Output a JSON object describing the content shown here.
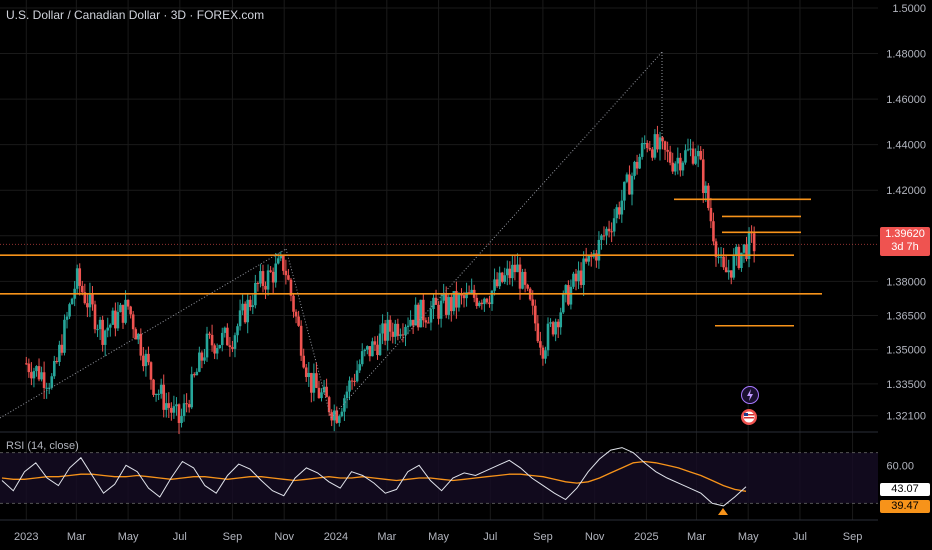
{
  "header": {
    "symbol_title": "U.S. Dollar / Canadian Dollar · 3D · FOREX.com"
  },
  "rsi": {
    "label": "RSI (14, close)",
    "value": "43.07",
    "ma_value": "39.47",
    "level_label": "60.00"
  },
  "price_box": {
    "price": "1.39620",
    "countdown": "3d 7h"
  },
  "colors": {
    "up": "#26a69a",
    "down": "#ef5350",
    "level": "#f7931a",
    "rsi": "#e0e3eb",
    "rsi_ma": "#f7931a",
    "grid": "#1a1a1a",
    "text": "#b2b5be",
    "dotted": "#9598a1"
  },
  "icons": [
    "lightning-event-icon",
    "us-flag-event-icon"
  ],
  "chart_data": [
    {
      "type": "candlestick",
      "title": "U.S. Dollar / Canadian Dollar · 3D · FOREX.com",
      "x_ticks": [
        "2023",
        "Mar",
        "May",
        "Jul",
        "Sep",
        "Nov",
        "2024",
        "Mar",
        "May",
        "Jul",
        "Sep",
        "Nov",
        "2025",
        "Mar",
        "May",
        "Jul",
        "Sep"
      ],
      "y_ticks": [
        1.5,
        1.48,
        1.46,
        1.44,
        1.42,
        1.4,
        1.38,
        1.365,
        1.35,
        1.335,
        1.321
      ],
      "last_price": 1.3962,
      "horizontal_levels": [
        1.3915,
        1.3745,
        1.416,
        1.4085,
        1.4015,
        1.3605
      ],
      "price_path": [
        [
          "2023-01-01",
          1.344
        ],
        [
          "2023-02-01",
          1.336
        ],
        [
          "2023-03-01",
          1.381
        ],
        [
          "2023-04-01",
          1.358
        ],
        [
          "2023-05-01",
          1.369
        ],
        [
          "2023-06-01",
          1.334
        ],
        [
          "2023-07-01",
          1.318
        ],
        [
          "2023-08-01",
          1.352
        ],
        [
          "2023-09-01",
          1.356
        ],
        [
          "2023-10-01",
          1.378
        ],
        [
          "2023-11-01",
          1.388
        ],
        [
          "2023-12-01",
          1.336
        ],
        [
          "2024-01-01",
          1.322
        ],
        [
          "2024-02-01",
          1.346
        ],
        [
          "2024-03-01",
          1.358
        ],
        [
          "2024-04-01",
          1.365
        ],
        [
          "2024-05-01",
          1.368
        ],
        [
          "2024-06-01",
          1.372
        ],
        [
          "2024-07-01",
          1.375
        ],
        [
          "2024-08-01",
          1.386
        ],
        [
          "2024-09-01",
          1.352
        ],
        [
          "2024-10-01",
          1.375
        ],
        [
          "2024-11-01",
          1.392
        ],
        [
          "2024-12-01",
          1.414
        ],
        [
          "2025-01-01",
          1.442
        ],
        [
          "2025-02-01",
          1.433
        ],
        [
          "2025-03-01",
          1.438
        ],
        [
          "2025-04-01",
          1.382
        ],
        [
          "2025-05-01",
          1.3962
        ]
      ]
    },
    {
      "type": "line",
      "title": "RSI (14, close)",
      "series": [
        {
          "name": "RSI",
          "values": [
            48,
            40,
            55,
            62,
            50,
            44,
            58,
            66,
            52,
            38,
            45,
            60,
            55,
            42,
            35,
            50,
            63,
            58,
            44,
            38,
            52,
            61,
            57,
            48,
            40,
            36,
            50,
            58,
            54,
            47,
            42,
            55,
            52,
            46,
            38,
            41,
            55,
            60,
            48,
            40,
            50,
            54,
            52,
            56,
            60,
            64,
            58,
            50,
            44,
            38,
            33,
            42,
            55,
            65,
            72,
            74,
            70,
            62,
            55,
            50,
            46,
            42,
            38,
            30,
            28,
            35,
            43.07
          ]
        },
        {
          "name": "MA",
          "values": [
            50,
            49,
            49,
            50,
            51,
            51,
            52,
            53,
            53,
            52,
            51,
            51,
            52,
            51,
            50,
            49,
            50,
            51,
            51,
            50,
            49,
            50,
            51,
            51,
            50,
            49,
            48,
            49,
            50,
            51,
            50,
            50,
            51,
            50,
            49,
            48,
            49,
            50,
            50,
            49,
            48,
            49,
            50,
            51,
            52,
            53,
            53,
            52,
            51,
            49,
            47,
            46,
            47,
            50,
            54,
            58,
            62,
            63,
            62,
            60,
            58,
            55,
            52,
            48,
            44,
            41,
            39.47
          ]
        }
      ],
      "y_ticks": [
        60
      ]
    }
  ]
}
